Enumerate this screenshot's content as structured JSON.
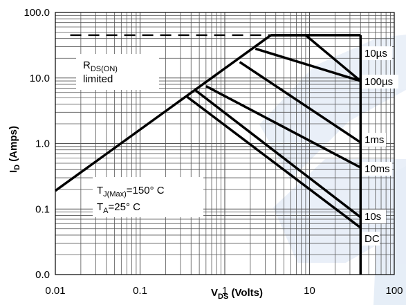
{
  "chart_data": {
    "type": "line",
    "xscale": "log",
    "yscale": "log",
    "xlim": [
      0.01,
      100
    ],
    "ylim": [
      0.01,
      100
    ],
    "xticks": [
      {
        "v": 0.01,
        "label": "0.01"
      },
      {
        "v": 0.1,
        "label": "0.1"
      },
      {
        "v": 1,
        "label": "1"
      },
      {
        "v": 10,
        "label": "10"
      },
      {
        "v": 100,
        "label": "100"
      }
    ],
    "yticks": [
      {
        "v": 0.01,
        "label": "0.0"
      },
      {
        "v": 0.1,
        "label": "0.1"
      },
      {
        "v": 1,
        "label": "1.0"
      },
      {
        "v": 10,
        "label": "10.0"
      },
      {
        "v": 100,
        "label": "100.0"
      }
    ],
    "xlabel": {
      "main": "V",
      "sub": "DS",
      "rest": " (Volts)"
    },
    "ylabel": {
      "main": "I",
      "sub": "D",
      "rest": " (Amps)"
    },
    "grid": true,
    "current_limit": 45,
    "vmax": 40,
    "rds_boundary": [
      [
        0.01,
        0.19
      ],
      [
        3.5,
        45
      ]
    ],
    "series": [
      {
        "name": "10µs",
        "points": [
          [
            3.5,
            45
          ],
          [
            9,
            45
          ],
          [
            40,
            9
          ]
        ]
      },
      {
        "name": "100µs",
        "points": [
          [
            2.3,
            28
          ],
          [
            40,
            9
          ]
        ]
      },
      {
        "name": "1ms",
        "points": [
          [
            1.5,
            17.5
          ],
          [
            40,
            1.04
          ]
        ]
      },
      {
        "name": "10ms",
        "points": [
          [
            0.6,
            7.5
          ],
          [
            40,
            0.43
          ]
        ]
      },
      {
        "name": "10s",
        "points": [
          [
            0.45,
            6.5
          ],
          [
            40,
            0.075
          ]
        ]
      },
      {
        "name": "DC",
        "points": [
          [
            0.35,
            5.3
          ],
          [
            40,
            0.052
          ]
        ]
      }
    ],
    "annotations": {
      "rds": {
        "main": "R",
        "sub": "DS(ON)",
        "line2": "limited"
      },
      "tj": {
        "main": "T",
        "sub": "J(Max)",
        "rest": "=150° C"
      },
      "ta": {
        "main": "T",
        "sub": "A",
        "rest": "=25° C"
      }
    }
  }
}
